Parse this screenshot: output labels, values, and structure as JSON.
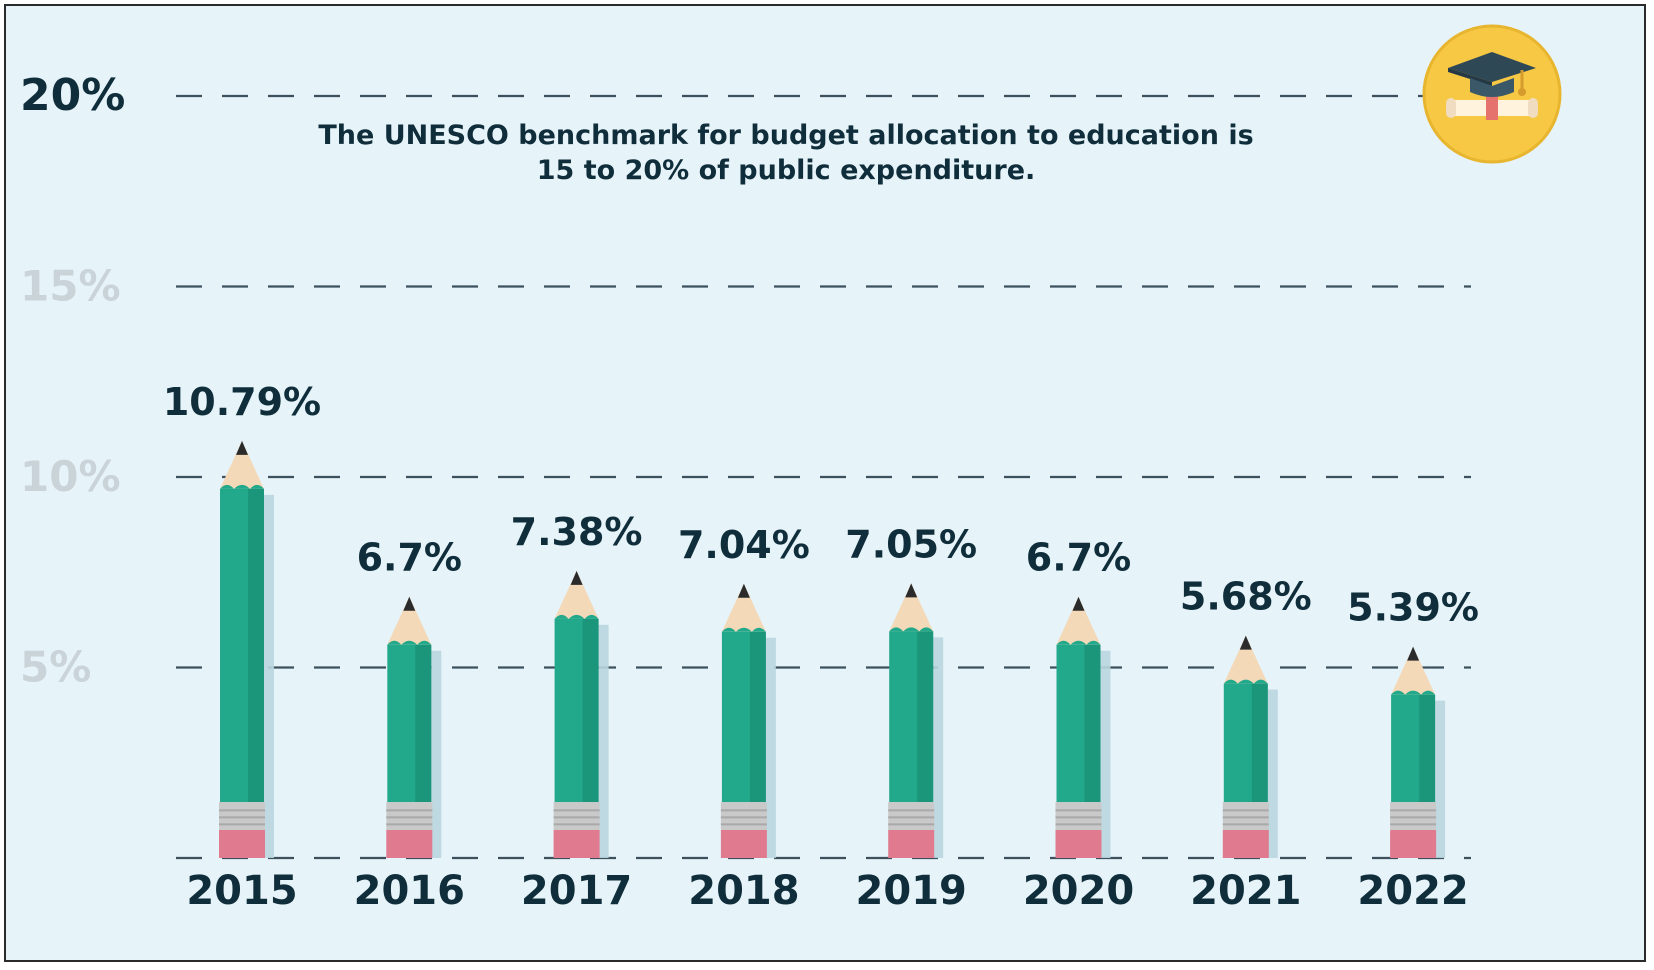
{
  "chart_data": {
    "type": "bar",
    "title": "The UNESCO benchmark for budget allocation to education is 15 to 20% of public expenditure.",
    "title_lines": [
      "The UNESCO benchmark for budget allocation to education is",
      "15 to 20% of public expenditure."
    ],
    "categories": [
      "2015",
      "2016",
      "2017",
      "2018",
      "2019",
      "2020",
      "2021",
      "2022"
    ],
    "values": [
      10.79,
      6.7,
      7.38,
      7.04,
      7.05,
      6.7,
      5.68,
      5.39
    ],
    "value_labels": [
      "10.79%",
      "6.7%",
      "7.38%",
      "7.04%",
      "7.05%",
      "6.7%",
      "5.68%",
      "5.39%"
    ],
    "y_ticks": [
      {
        "value": 5,
        "label": "5%"
      },
      {
        "value": 10,
        "label": "10%"
      },
      {
        "value": 15,
        "label": "15%"
      },
      {
        "value": 20,
        "label": "20%"
      }
    ],
    "ylim": [
      0,
      20
    ],
    "grid": true,
    "xlabel": "",
    "ylabel": "",
    "colors": {
      "background": "#e6f3f8",
      "pencil_body": "#22a88a",
      "pencil_body_dark": "#17866d",
      "pencil_wood": "#f4d9b8",
      "pencil_lead": "#2b2b2b",
      "ferrule": "#c9c9c9",
      "eraser": "#e07a8f",
      "label_dark": "#0f2d3a",
      "tick_faded": "#c9d3d8",
      "grid": "#1f3542",
      "badge": "#f7c844"
    },
    "icon": "graduation-cap-diploma-icon"
  }
}
